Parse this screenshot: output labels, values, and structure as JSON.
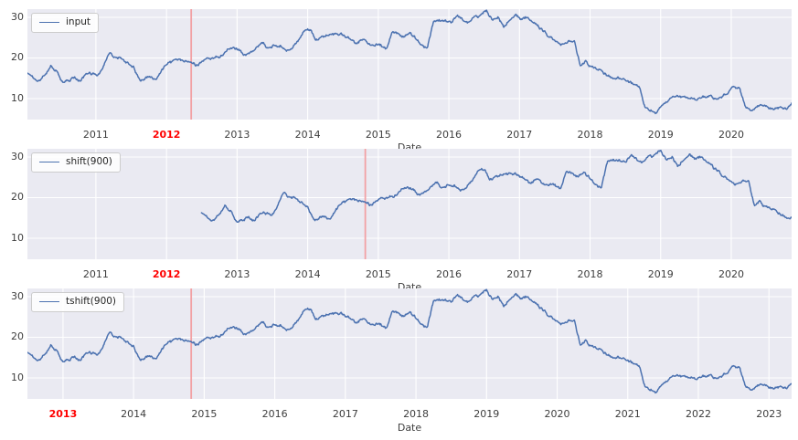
{
  "chart_data": {
    "type": "line",
    "title": "",
    "xlabel": "Date",
    "ylabel": "",
    "grid": true,
    "legend_position": "upper left",
    "colors": {
      "figure_bg": "#ffffff",
      "axes_bg": "#eaeaf2",
      "grid": "#ffffff",
      "line": "#4c72b0",
      "vline": "#f2a1a4",
      "tick": "#3d3d3d",
      "red_tick": "#ff0000"
    },
    "ylim": [
      4.83,
      32.02
    ],
    "yticks": [
      10,
      20,
      30
    ],
    "series_x_start": 2010.0,
    "series_x_step": 0.0833333,
    "shift_days": 900,
    "shift_years": 2.4658,
    "values": [
      16.0,
      15.2,
      14.9,
      16.3,
      18.6,
      17.0,
      14.2,
      13.8,
      15.3,
      14.4,
      15.8,
      15.6,
      16.1,
      18.0,
      20.8,
      19.6,
      19.9,
      19.2,
      18.4,
      15.0,
      14.9,
      15.4,
      14.6,
      17.0,
      18.2,
      18.8,
      19.3,
      18.7,
      18.9,
      18.0,
      19.2,
      19.8,
      20.3,
      21.0,
      22.4,
      22.6,
      22.3,
      20.9,
      21.9,
      23.2,
      23.5,
      22.4,
      23.0,
      23.6,
      22.4,
      23.2,
      24.8,
      26.2,
      26.4,
      24.6,
      25.4,
      25.7,
      25.9,
      25.0,
      25.2,
      24.2,
      22.8,
      24.6,
      23.9,
      23.3,
      23.1,
      22.0,
      26.8,
      26.0,
      25.2,
      25.7,
      24.5,
      23.0,
      22.4,
      28.7,
      29.4,
      28.9,
      28.9,
      30.9,
      29.4,
      28.7,
      29.9,
      30.3,
      31.6,
      29.6,
      30.4,
      27.6,
      29.6,
      30.2,
      29.3,
      29.9,
      28.8,
      27.2,
      26.3,
      25.1,
      24.2,
      23.6,
      24.2,
      24.7,
      18.2,
      19.1,
      18.0,
      16.9,
      16.1,
      15.7,
      15.3,
      14.6,
      14.2,
      13.4,
      13.2,
      7.6,
      7.2,
      6.6,
      8.8,
      10.1,
      10.3,
      9.8,
      10.4,
      10.0,
      9.6,
      10.2,
      10.4,
      9.9,
      10.5,
      11.2,
      13.2,
      12.4,
      8.3,
      7.7,
      8.3,
      8.9,
      8.1,
      7.7,
      7.9,
      7.6,
      9.2,
      11.6
    ],
    "subplots": [
      {
        "legend": "input",
        "transform": "none",
        "xlim": [
          2010.03,
          2020.855
        ],
        "xticks": [
          2011,
          2012,
          2013,
          2014,
          2015,
          2016,
          2017,
          2018,
          2019,
          2020
        ],
        "red_tick": "2012",
        "vline_x": 2012.35
      },
      {
        "legend": "shift(900)",
        "transform": "shift",
        "xlim": [
          2010.03,
          2020.855
        ],
        "xticks": [
          2011,
          2012,
          2013,
          2014,
          2015,
          2016,
          2017,
          2018,
          2019,
          2020
        ],
        "red_tick": "2012",
        "vline_x": 2014.816
      },
      {
        "legend": "tshift(900)",
        "transform": "tshift",
        "xlim": [
          2012.496,
          2023.321
        ],
        "xticks": [
          2013,
          2014,
          2015,
          2016,
          2017,
          2018,
          2019,
          2020,
          2021,
          2022,
          2023
        ],
        "red_tick": "2013",
        "vline_x": 2014.816
      }
    ]
  }
}
